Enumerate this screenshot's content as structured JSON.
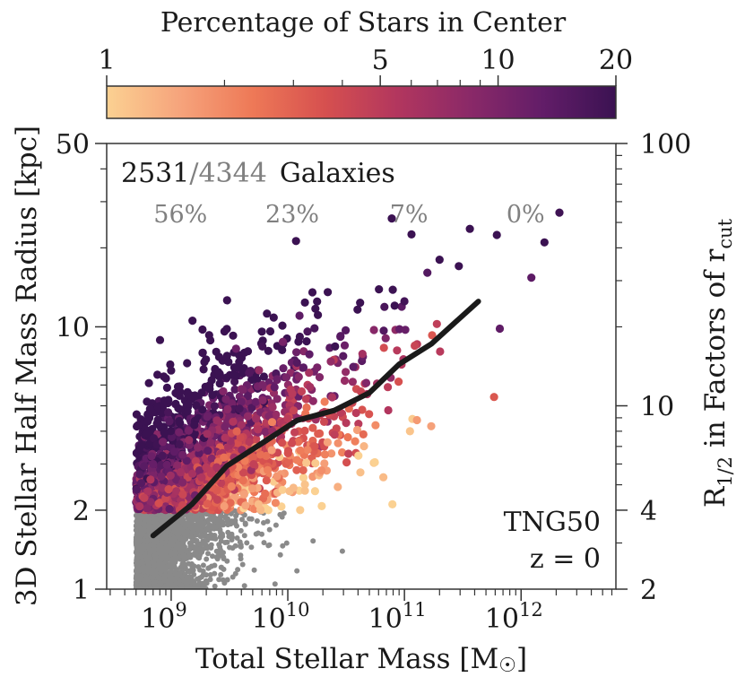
{
  "chart_data": {
    "type": "scatter",
    "colorbar": {
      "title": "Percentage of Stars in Center",
      "scale": "log",
      "range": [
        1,
        20
      ],
      "tick_labels": [
        {
          "value": 1,
          "label": "1"
        },
        {
          "value": 5,
          "label": "5"
        },
        {
          "value": 10,
          "label": "10"
        },
        {
          "value": 20,
          "label": "20"
        }
      ],
      "minor_ticks": [
        2,
        3,
        4,
        6,
        7,
        8,
        9
      ],
      "colormap": [
        "#fbd192",
        "#f6a47c",
        "#ee7957",
        "#d6504f",
        "#b2365e",
        "#8a2968",
        "#621d68",
        "#3b1252"
      ]
    },
    "xlabel": "Total Stellar Mass [M☉]",
    "ylabel": "3D Stellar Half Mass Radius [kpc]",
    "y2label": "R1/2 in Factors of rcut",
    "x_scale": "log",
    "y_scale": "log",
    "xlim": [
      280000000.0,
      6500000000000.0
    ],
    "ylim": [
      1,
      50
    ],
    "x_ticks": [
      {
        "value": 1000000000.0,
        "base": "10",
        "exp": "9"
      },
      {
        "value": 10000000000.0,
        "base": "10",
        "exp": "10"
      },
      {
        "value": 100000000000.0,
        "base": "10",
        "exp": "11"
      },
      {
        "value": 1000000000000.0,
        "base": "10",
        "exp": "12"
      }
    ],
    "y_ticks": [
      {
        "value": 1,
        "label": "1"
      },
      {
        "value": 2,
        "label": "2"
      },
      {
        "value": 10,
        "label": "10"
      },
      {
        "value": 50,
        "label": "50"
      }
    ],
    "y2_ticks": [
      {
        "value": 1,
        "label": "2"
      },
      {
        "value": 2,
        "label": "4"
      },
      {
        "value": 5,
        "label": "10"
      },
      {
        "value": 50,
        "label": "100"
      }
    ],
    "counts": {
      "selected": "2531",
      "separator": "/",
      "total": "4344",
      "unit": "Galaxies"
    },
    "bin_percentages": [
      {
        "x": 1100000000.0,
        "label": "56%"
      },
      {
        "x": 10000000000.0,
        "label": "23%"
      },
      {
        "x": 100000000000.0,
        "label": "7%"
      },
      {
        "x": 1000000000000.0,
        "label": "0%"
      }
    ],
    "annotation": {
      "line1": "TNG50",
      "line2": "z = 0"
    },
    "median_line": {
      "x": [
        700000000.0,
        1500000000.0,
        3000000000.0,
        6000000000.0,
        12000000000.0,
        25000000000.0,
        50000000000.0,
        90000000000.0,
        170000000000.0,
        430000000000.0
      ],
      "y": [
        1.6,
        2.1,
        2.95,
        3.6,
        4.4,
        4.8,
        5.6,
        7.2,
        8.6,
        12.5
      ]
    },
    "gray_points": "galaxies with R1/2 < 2 kpc (not colored)",
    "scatter_density": {
      "colored_count": 2531,
      "x_range": [
        500000000.0,
        6000000000000.0
      ],
      "y_range": [
        2,
        45
      ]
    }
  }
}
